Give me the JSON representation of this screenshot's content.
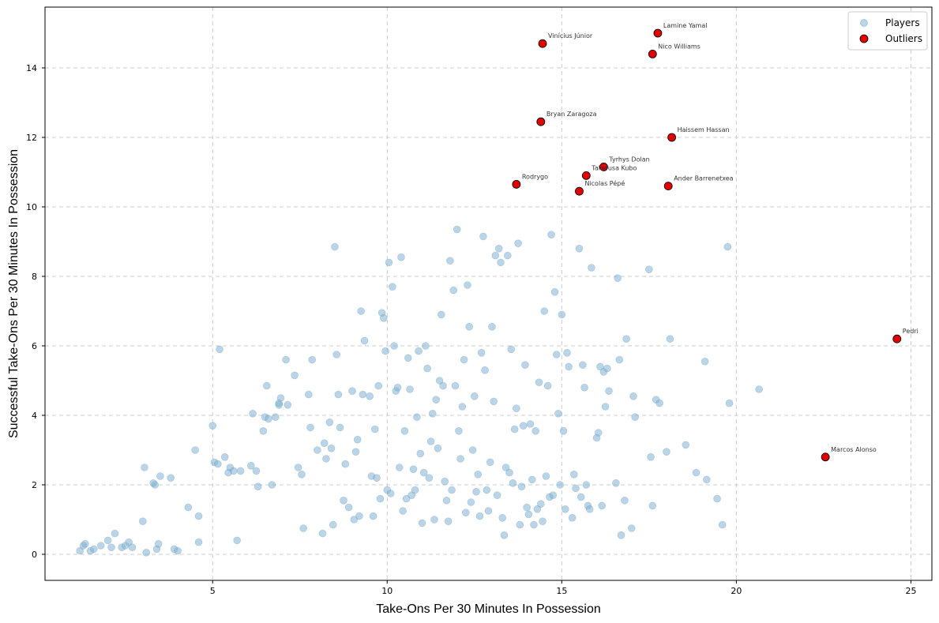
{
  "chart_data": {
    "type": "scatter",
    "title": "",
    "xlabel": "Take-Ons Per 30 Minutes In Possession",
    "ylabel": "Successful Take-Ons Per 30 Minutes In Possession",
    "xlim": [
      0.2,
      25.6
    ],
    "ylim": [
      -0.75,
      15.75
    ],
    "xticks": [
      5,
      10,
      15,
      20,
      25
    ],
    "yticks": [
      0,
      2,
      4,
      6,
      8,
      10,
      12,
      14
    ],
    "grid": true,
    "legend_position": "top-right",
    "colors": {
      "players": "#7fb2d4",
      "outliers": "#e00000"
    },
    "series": [
      {
        "name": "Players",
        "points": [
          [
            1.2,
            0.1
          ],
          [
            1.3,
            0.25
          ],
          [
            1.35,
            0.3
          ],
          [
            1.5,
            0.1
          ],
          [
            1.6,
            0.15
          ],
          [
            1.8,
            0.25
          ],
          [
            2.0,
            0.4
          ],
          [
            2.1,
            0.2
          ],
          [
            2.2,
            0.6
          ],
          [
            2.4,
            0.2
          ],
          [
            2.5,
            0.25
          ],
          [
            2.6,
            0.35
          ],
          [
            2.7,
            0.2
          ],
          [
            3.0,
            0.95
          ],
          [
            3.05,
            2.5
          ],
          [
            3.1,
            0.05
          ],
          [
            3.3,
            2.05
          ],
          [
            3.35,
            2.0
          ],
          [
            3.4,
            0.15
          ],
          [
            3.45,
            0.3
          ],
          [
            3.5,
            2.25
          ],
          [
            3.8,
            2.2
          ],
          [
            3.9,
            0.15
          ],
          [
            4.0,
            0.1
          ],
          [
            4.3,
            1.35
          ],
          [
            4.5,
            3.0
          ],
          [
            4.6,
            1.1
          ],
          [
            4.6,
            0.35
          ],
          [
            5.0,
            3.7
          ],
          [
            5.05,
            2.65
          ],
          [
            5.15,
            2.6
          ],
          [
            5.2,
            5.9
          ],
          [
            5.35,
            2.8
          ],
          [
            5.45,
            2.35
          ],
          [
            5.5,
            2.5
          ],
          [
            5.6,
            2.4
          ],
          [
            5.7,
            0.4
          ],
          [
            5.8,
            2.4
          ],
          [
            6.1,
            2.55
          ],
          [
            6.15,
            4.05
          ],
          [
            6.25,
            2.4
          ],
          [
            6.3,
            1.95
          ],
          [
            6.45,
            3.55
          ],
          [
            6.5,
            3.95
          ],
          [
            6.55,
            4.85
          ],
          [
            6.6,
            3.9
          ],
          [
            6.7,
            2.0
          ],
          [
            6.8,
            3.95
          ],
          [
            6.9,
            4.3
          ],
          [
            6.95,
            4.5
          ],
          [
            6.9,
            4.35
          ],
          [
            7.1,
            5.6
          ],
          [
            7.15,
            4.3
          ],
          [
            7.35,
            5.15
          ],
          [
            7.45,
            2.5
          ],
          [
            7.55,
            2.3
          ],
          [
            7.6,
            0.75
          ],
          [
            7.75,
            4.6
          ],
          [
            7.8,
            3.65
          ],
          [
            7.85,
            5.6
          ],
          [
            8.0,
            3.0
          ],
          [
            8.15,
            0.6
          ],
          [
            8.2,
            3.2
          ],
          [
            8.25,
            2.75
          ],
          [
            8.35,
            3.8
          ],
          [
            8.4,
            3.05
          ],
          [
            8.45,
            0.85
          ],
          [
            8.5,
            8.85
          ],
          [
            8.55,
            5.75
          ],
          [
            8.6,
            4.6
          ],
          [
            8.65,
            3.65
          ],
          [
            8.75,
            1.55
          ],
          [
            8.8,
            2.6
          ],
          [
            8.9,
            1.35
          ],
          [
            9.0,
            4.7
          ],
          [
            9.05,
            1.0
          ],
          [
            9.1,
            2.95
          ],
          [
            9.15,
            3.3
          ],
          [
            9.2,
            1.1
          ],
          [
            9.25,
            7.0
          ],
          [
            9.3,
            4.6
          ],
          [
            9.35,
            6.15
          ],
          [
            9.5,
            4.55
          ],
          [
            9.55,
            2.25
          ],
          [
            9.6,
            1.1
          ],
          [
            9.65,
            3.6
          ],
          [
            9.7,
            2.2
          ],
          [
            9.75,
            4.85
          ],
          [
            9.8,
            1.6
          ],
          [
            9.85,
            6.95
          ],
          [
            9.9,
            6.8
          ],
          [
            9.95,
            5.85
          ],
          [
            10.0,
            1.85
          ],
          [
            10.05,
            8.4
          ],
          [
            10.1,
            1.75
          ],
          [
            10.15,
            7.7
          ],
          [
            10.2,
            6.0
          ],
          [
            10.25,
            4.7
          ],
          [
            10.3,
            4.8
          ],
          [
            10.35,
            2.5
          ],
          [
            10.4,
            8.55
          ],
          [
            10.45,
            1.25
          ],
          [
            10.5,
            3.55
          ],
          [
            10.55,
            1.6
          ],
          [
            10.6,
            5.65
          ],
          [
            10.65,
            4.75
          ],
          [
            10.7,
            1.7
          ],
          [
            10.75,
            2.45
          ],
          [
            10.8,
            1.85
          ],
          [
            10.85,
            3.95
          ],
          [
            10.9,
            5.85
          ],
          [
            10.95,
            2.9
          ],
          [
            11.0,
            0.9
          ],
          [
            11.05,
            2.35
          ],
          [
            11.1,
            6.0
          ],
          [
            11.15,
            5.35
          ],
          [
            11.2,
            2.2
          ],
          [
            11.25,
            3.25
          ],
          [
            11.3,
            4.05
          ],
          [
            11.35,
            1.0
          ],
          [
            11.4,
            4.45
          ],
          [
            11.45,
            3.05
          ],
          [
            11.5,
            5.0
          ],
          [
            11.55,
            6.9
          ],
          [
            11.6,
            4.85
          ],
          [
            11.65,
            2.1
          ],
          [
            11.7,
            1.55
          ],
          [
            11.75,
            0.95
          ],
          [
            11.8,
            8.45
          ],
          [
            11.85,
            1.85
          ],
          [
            11.9,
            7.6
          ],
          [
            11.95,
            4.85
          ],
          [
            12.0,
            9.35
          ],
          [
            12.05,
            3.55
          ],
          [
            12.1,
            2.75
          ],
          [
            12.15,
            4.25
          ],
          [
            12.2,
            5.6
          ],
          [
            12.25,
            1.2
          ],
          [
            12.3,
            7.75
          ],
          [
            12.35,
            6.55
          ],
          [
            12.4,
            1.5
          ],
          [
            12.45,
            3.0
          ],
          [
            12.5,
            4.55
          ],
          [
            12.55,
            1.8
          ],
          [
            12.6,
            2.3
          ],
          [
            12.65,
            1.1
          ],
          [
            12.7,
            5.8
          ],
          [
            12.75,
            9.15
          ],
          [
            12.8,
            5.3
          ],
          [
            12.85,
            1.85
          ],
          [
            12.9,
            1.25
          ],
          [
            12.95,
            2.65
          ],
          [
            13.0,
            6.55
          ],
          [
            13.05,
            4.4
          ],
          [
            13.1,
            8.6
          ],
          [
            13.15,
            1.7
          ],
          [
            13.2,
            8.8
          ],
          [
            13.25,
            8.4
          ],
          [
            13.3,
            1.05
          ],
          [
            13.35,
            0.55
          ],
          [
            13.4,
            2.5
          ],
          [
            13.45,
            8.6
          ],
          [
            13.5,
            2.35
          ],
          [
            13.55,
            5.9
          ],
          [
            13.6,
            2.05
          ],
          [
            13.65,
            3.6
          ],
          [
            13.7,
            4.2
          ],
          [
            13.75,
            8.95
          ],
          [
            13.8,
            0.85
          ],
          [
            13.85,
            1.95
          ],
          [
            13.9,
            3.7
          ],
          [
            13.95,
            5.45
          ],
          [
            14.0,
            1.35
          ],
          [
            14.05,
            1.15
          ],
          [
            14.1,
            3.75
          ],
          [
            14.15,
            2.15
          ],
          [
            14.2,
            0.85
          ],
          [
            14.25,
            3.55
          ],
          [
            14.3,
            1.3
          ],
          [
            14.35,
            4.95
          ],
          [
            14.4,
            1.45
          ],
          [
            14.45,
            0.95
          ],
          [
            14.5,
            7.0
          ],
          [
            14.55,
            2.25
          ],
          [
            14.6,
            4.85
          ],
          [
            14.65,
            1.65
          ],
          [
            14.7,
            9.2
          ],
          [
            14.75,
            1.7
          ],
          [
            14.8,
            7.55
          ],
          [
            14.85,
            5.75
          ],
          [
            14.9,
            4.05
          ],
          [
            14.95,
            2.0
          ],
          [
            15.0,
            6.9
          ],
          [
            15.05,
            3.55
          ],
          [
            15.1,
            1.3
          ],
          [
            15.15,
            5.8
          ],
          [
            15.2,
            5.4
          ],
          [
            15.3,
            1.05
          ],
          [
            15.35,
            2.3
          ],
          [
            15.4,
            1.9
          ],
          [
            15.5,
            8.8
          ],
          [
            15.55,
            1.65
          ],
          [
            15.6,
            5.45
          ],
          [
            15.65,
            4.8
          ],
          [
            15.7,
            2.0
          ],
          [
            15.75,
            1.4
          ],
          [
            15.8,
            1.3
          ],
          [
            15.85,
            8.25
          ],
          [
            16.0,
            3.35
          ],
          [
            16.05,
            3.5
          ],
          [
            16.1,
            5.4
          ],
          [
            16.15,
            1.4
          ],
          [
            16.2,
            5.25
          ],
          [
            16.25,
            4.25
          ],
          [
            16.3,
            5.35
          ],
          [
            16.35,
            4.7
          ],
          [
            16.55,
            2.05
          ],
          [
            16.6,
            7.95
          ],
          [
            16.65,
            5.6
          ],
          [
            16.7,
            0.55
          ],
          [
            16.8,
            1.55
          ],
          [
            16.85,
            6.2
          ],
          [
            17.0,
            0.75
          ],
          [
            17.05,
            4.55
          ],
          [
            17.1,
            3.95
          ],
          [
            17.5,
            8.2
          ],
          [
            17.55,
            2.8
          ],
          [
            17.6,
            1.4
          ],
          [
            17.7,
            4.45
          ],
          [
            17.8,
            4.35
          ],
          [
            18.0,
            2.95
          ],
          [
            18.1,
            6.2
          ],
          [
            18.55,
            3.15
          ],
          [
            18.85,
            2.35
          ],
          [
            19.1,
            5.55
          ],
          [
            19.15,
            2.15
          ],
          [
            19.45,
            1.6
          ],
          [
            19.6,
            0.85
          ],
          [
            19.75,
            8.85
          ],
          [
            19.8,
            4.35
          ],
          [
            20.65,
            4.75
          ]
        ]
      },
      {
        "name": "Outliers",
        "points": [
          {
            "x": 17.75,
            "y": 15.0,
            "label": "Lamine Yamal"
          },
          {
            "x": 14.45,
            "y": 14.7,
            "label": "Vinícius Júnior"
          },
          {
            "x": 17.6,
            "y": 14.4,
            "label": "Nico Williams"
          },
          {
            "x": 14.4,
            "y": 12.45,
            "label": "Bryan Zaragoza"
          },
          {
            "x": 18.15,
            "y": 12.0,
            "label": "Haissem Hassan"
          },
          {
            "x": 16.2,
            "y": 11.15,
            "label": "Tyrhys Dolan"
          },
          {
            "x": 15.7,
            "y": 10.9,
            "label": "Takefusa Kubo"
          },
          {
            "x": 13.7,
            "y": 10.65,
            "label": "Rodrygo"
          },
          {
            "x": 18.05,
            "y": 10.6,
            "label": "Ander Barrenetxea"
          },
          {
            "x": 15.5,
            "y": 10.45,
            "label": "Nicolas Pépé"
          },
          {
            "x": 24.6,
            "y": 6.2,
            "label": "Pedri"
          },
          {
            "x": 22.55,
            "y": 2.8,
            "label": "Marcos Alonso"
          }
        ]
      }
    ]
  }
}
